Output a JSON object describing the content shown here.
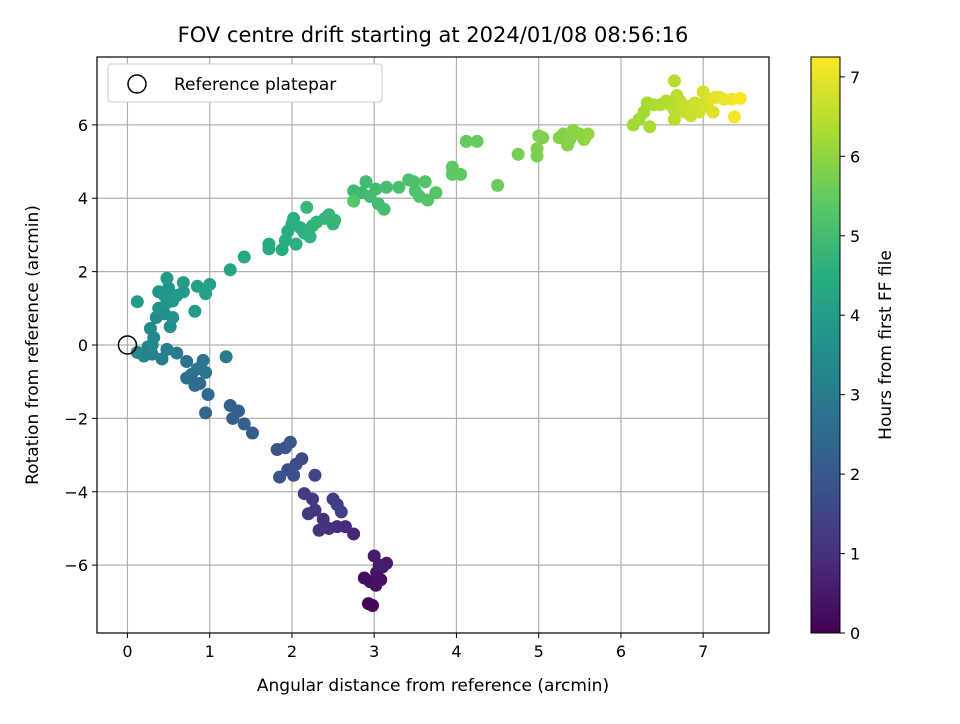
{
  "chart_data": {
    "type": "scatter",
    "title": "FOV centre drift starting at 2024/01/08 08:56:16",
    "xlabel": "Angular distance from reference (arcmin)",
    "ylabel": "Rotation from reference (arcmin)",
    "xlim": [
      -0.37,
      7.8
    ],
    "ylim": [
      -7.85,
      7.85
    ],
    "xticks": [
      0,
      1,
      2,
      3,
      4,
      5,
      6,
      7
    ],
    "yticks": [
      -6,
      -4,
      -2,
      0,
      2,
      4,
      6
    ],
    "grid": true,
    "legend": {
      "placement": "top-left",
      "entries": [
        "Reference platepar"
      ]
    },
    "reference_point": {
      "label": "Reference platepar",
      "x": 0,
      "y": 0
    },
    "colorbar": {
      "label": "Hours from first FF file",
      "range": [
        0,
        7.25
      ],
      "ticks": [
        0,
        1,
        2,
        3,
        4,
        5,
        6,
        7
      ],
      "colormap": "viridis"
    },
    "series": [
      {
        "color_by": "hours",
        "points": [
          [
            2.98,
            -7.1,
            0.1
          ],
          [
            2.93,
            -7.05,
            0.15
          ],
          [
            2.88,
            -6.35,
            0.2
          ],
          [
            2.95,
            -6.45,
            0.25
          ],
          [
            3.02,
            -6.55,
            0.3
          ],
          [
            3.08,
            -6.4,
            0.35
          ],
          [
            3.03,
            -6.2,
            0.4
          ],
          [
            3.1,
            -6.05,
            0.45
          ],
          [
            3.15,
            -5.95,
            0.5
          ],
          [
            3.0,
            -5.75,
            0.55
          ],
          [
            3.06,
            -6.0,
            0.6
          ],
          [
            2.75,
            -5.15,
            0.8
          ],
          [
            2.65,
            -4.95,
            0.85
          ],
          [
            2.55,
            -4.95,
            0.9
          ],
          [
            2.45,
            -5.0,
            0.95
          ],
          [
            2.38,
            -4.75,
            1.0
          ],
          [
            2.33,
            -5.05,
            1.05
          ],
          [
            2.28,
            -4.5,
            1.1
          ],
          [
            2.2,
            -4.6,
            1.15
          ],
          [
            2.25,
            -4.2,
            1.2
          ],
          [
            2.15,
            -4.05,
            1.25
          ],
          [
            2.5,
            -4.2,
            1.3
          ],
          [
            2.55,
            -4.35,
            1.35
          ],
          [
            2.6,
            -4.55,
            1.4
          ],
          [
            2.28,
            -3.55,
            1.5
          ],
          [
            2.12,
            -3.1,
            1.6
          ],
          [
            2.05,
            -3.25,
            1.65
          ],
          [
            2.02,
            -3.55,
            1.7
          ],
          [
            1.95,
            -3.4,
            1.75
          ],
          [
            1.85,
            -3.6,
            1.8
          ],
          [
            1.82,
            -2.85,
            1.85
          ],
          [
            1.92,
            -2.8,
            1.9
          ],
          [
            1.98,
            -2.65,
            1.95
          ],
          [
            1.52,
            -2.4,
            2.1
          ],
          [
            1.42,
            -2.15,
            2.15
          ],
          [
            1.35,
            -1.8,
            2.2
          ],
          [
            1.28,
            -2.0,
            2.25
          ],
          [
            1.25,
            -1.65,
            2.3
          ],
          [
            0.95,
            -1.85,
            2.4
          ],
          [
            0.98,
            -1.35,
            2.45
          ],
          [
            0.88,
            -1.05,
            2.5
          ],
          [
            0.82,
            -1.1,
            2.55
          ],
          [
            0.78,
            -0.8,
            2.6
          ],
          [
            0.72,
            -0.9,
            2.65
          ],
          [
            0.72,
            -0.45,
            2.7
          ],
          [
            0.85,
            -0.65,
            2.75
          ],
          [
            0.92,
            -0.42,
            2.8
          ],
          [
            0.95,
            -0.75,
            2.85
          ],
          [
            1.2,
            -0.32,
            2.95
          ],
          [
            0.6,
            -0.22,
            3.0
          ],
          [
            0.48,
            -0.12,
            3.05
          ],
          [
            0.42,
            -0.38,
            3.1
          ],
          [
            0.3,
            -0.25,
            3.15
          ],
          [
            0.25,
            -0.05,
            3.2
          ],
          [
            0.2,
            -0.3,
            3.25
          ],
          [
            0.12,
            -0.2,
            3.3
          ],
          [
            0.3,
            0.0,
            3.35
          ],
          [
            0.32,
            0.2,
            3.4
          ],
          [
            0.28,
            0.45,
            3.45
          ],
          [
            0.35,
            0.75,
            3.5
          ],
          [
            0.45,
            0.85,
            3.55
          ],
          [
            0.52,
            0.5,
            3.6
          ],
          [
            0.55,
            0.75,
            3.65
          ],
          [
            0.38,
            1.0,
            3.7
          ],
          [
            0.48,
            1.15,
            3.72
          ],
          [
            0.38,
            1.45,
            3.75
          ],
          [
            0.45,
            1.35,
            3.8
          ],
          [
            0.55,
            1.2,
            3.82
          ],
          [
            0.5,
            1.55,
            3.85
          ],
          [
            0.48,
            1.82,
            3.9
          ],
          [
            0.6,
            1.35,
            3.92
          ],
          [
            0.68,
            1.45,
            3.95
          ],
          [
            0.82,
            0.92,
            3.97
          ],
          [
            0.12,
            1.18,
            3.98
          ],
          [
            0.68,
            1.7,
            4.0
          ],
          [
            0.85,
            1.6,
            4.05
          ],
          [
            0.95,
            1.4,
            4.1
          ],
          [
            1.0,
            1.65,
            4.15
          ],
          [
            1.25,
            2.05,
            4.25
          ],
          [
            1.42,
            2.4,
            4.3
          ],
          [
            1.72,
            2.75,
            4.4
          ],
          [
            1.72,
            2.62,
            4.42
          ],
          [
            1.88,
            2.6,
            4.45
          ],
          [
            1.92,
            2.85,
            4.48
          ],
          [
            1.95,
            3.1,
            4.5
          ],
          [
            2.0,
            3.3,
            4.52
          ],
          [
            2.02,
            3.45,
            4.55
          ],
          [
            2.1,
            3.2,
            4.58
          ],
          [
            2.05,
            2.75,
            4.6
          ],
          [
            2.15,
            3.05,
            4.62
          ],
          [
            2.22,
            2.95,
            4.65
          ],
          [
            2.25,
            3.25,
            4.68
          ],
          [
            2.3,
            3.35,
            4.7
          ],
          [
            2.4,
            3.45,
            4.72
          ],
          [
            2.45,
            3.55,
            4.75
          ],
          [
            2.5,
            3.3,
            4.78
          ],
          [
            2.52,
            3.4,
            4.8
          ],
          [
            2.18,
            3.75,
            4.82
          ],
          [
            2.75,
            4.2,
            4.9
          ],
          [
            2.85,
            4.15,
            4.92
          ],
          [
            2.9,
            4.45,
            4.95
          ],
          [
            2.95,
            4.05,
            4.98
          ],
          [
            3.02,
            4.25,
            5.0
          ],
          [
            3.05,
            3.85,
            5.02
          ],
          [
            3.12,
            3.7,
            5.05
          ],
          [
            3.15,
            4.3,
            5.08
          ],
          [
            3.3,
            4.3,
            5.1
          ],
          [
            3.42,
            4.5,
            5.12
          ],
          [
            3.48,
            4.45,
            5.15
          ],
          [
            3.5,
            4.2,
            5.18
          ],
          [
            3.55,
            4.05,
            5.2
          ],
          [
            3.62,
            4.45,
            5.22
          ],
          [
            3.65,
            3.95,
            5.25
          ],
          [
            3.75,
            4.15,
            5.28
          ],
          [
            2.75,
            3.92,
            5.3
          ],
          [
            3.95,
            4.65,
            5.4
          ],
          [
            3.95,
            4.85,
            5.42
          ],
          [
            4.05,
            4.65,
            5.45
          ],
          [
            4.12,
            5.55,
            5.5
          ],
          [
            4.25,
            5.55,
            5.52
          ],
          [
            4.5,
            4.35,
            5.55
          ],
          [
            4.75,
            5.2,
            5.7
          ],
          [
            4.98,
            5.15,
            5.75
          ],
          [
            4.98,
            5.35,
            5.78
          ],
          [
            5.0,
            5.7,
            5.8
          ],
          [
            5.05,
            5.65,
            5.82
          ],
          [
            5.25,
            5.65,
            5.85
          ],
          [
            5.3,
            5.75,
            5.88
          ],
          [
            5.35,
            5.45,
            5.9
          ],
          [
            5.38,
            5.6,
            5.92
          ],
          [
            5.42,
            5.85,
            5.95
          ],
          [
            5.5,
            5.75,
            5.98
          ],
          [
            5.55,
            5.6,
            6.0
          ],
          [
            5.6,
            5.75,
            6.02
          ],
          [
            6.15,
            6.0,
            6.2
          ],
          [
            6.22,
            6.15,
            6.22
          ],
          [
            6.28,
            6.35,
            6.25
          ],
          [
            6.32,
            6.6,
            6.28
          ],
          [
            6.35,
            5.95,
            6.3
          ],
          [
            6.4,
            6.55,
            6.32
          ],
          [
            6.48,
            6.55,
            6.35
          ],
          [
            6.55,
            6.65,
            6.38
          ],
          [
            6.6,
            6.55,
            6.4
          ],
          [
            6.65,
            7.2,
            6.45
          ],
          [
            6.65,
            6.4,
            6.48
          ],
          [
            6.65,
            6.15,
            6.5
          ],
          [
            6.68,
            6.8,
            6.52
          ],
          [
            6.72,
            6.65,
            6.55
          ],
          [
            6.75,
            6.5,
            6.58
          ],
          [
            6.78,
            6.35,
            6.6
          ],
          [
            6.82,
            6.5,
            6.62
          ],
          [
            6.85,
            6.25,
            6.65
          ],
          [
            6.88,
            6.45,
            6.68
          ],
          [
            6.9,
            6.6,
            6.7
          ],
          [
            6.95,
            6.35,
            6.72
          ],
          [
            7.0,
            6.9,
            6.75
          ],
          [
            7.02,
            6.6,
            6.78
          ],
          [
            7.05,
            6.5,
            6.8
          ],
          [
            7.08,
            6.7,
            6.85
          ],
          [
            7.12,
            6.35,
            6.9
          ],
          [
            7.15,
            6.75,
            6.95
          ],
          [
            7.2,
            6.75,
            7.0
          ],
          [
            7.25,
            6.7,
            7.05
          ],
          [
            7.35,
            6.7,
            7.1
          ],
          [
            7.38,
            6.22,
            7.15
          ],
          [
            7.45,
            6.72,
            7.2
          ]
        ]
      }
    ]
  }
}
